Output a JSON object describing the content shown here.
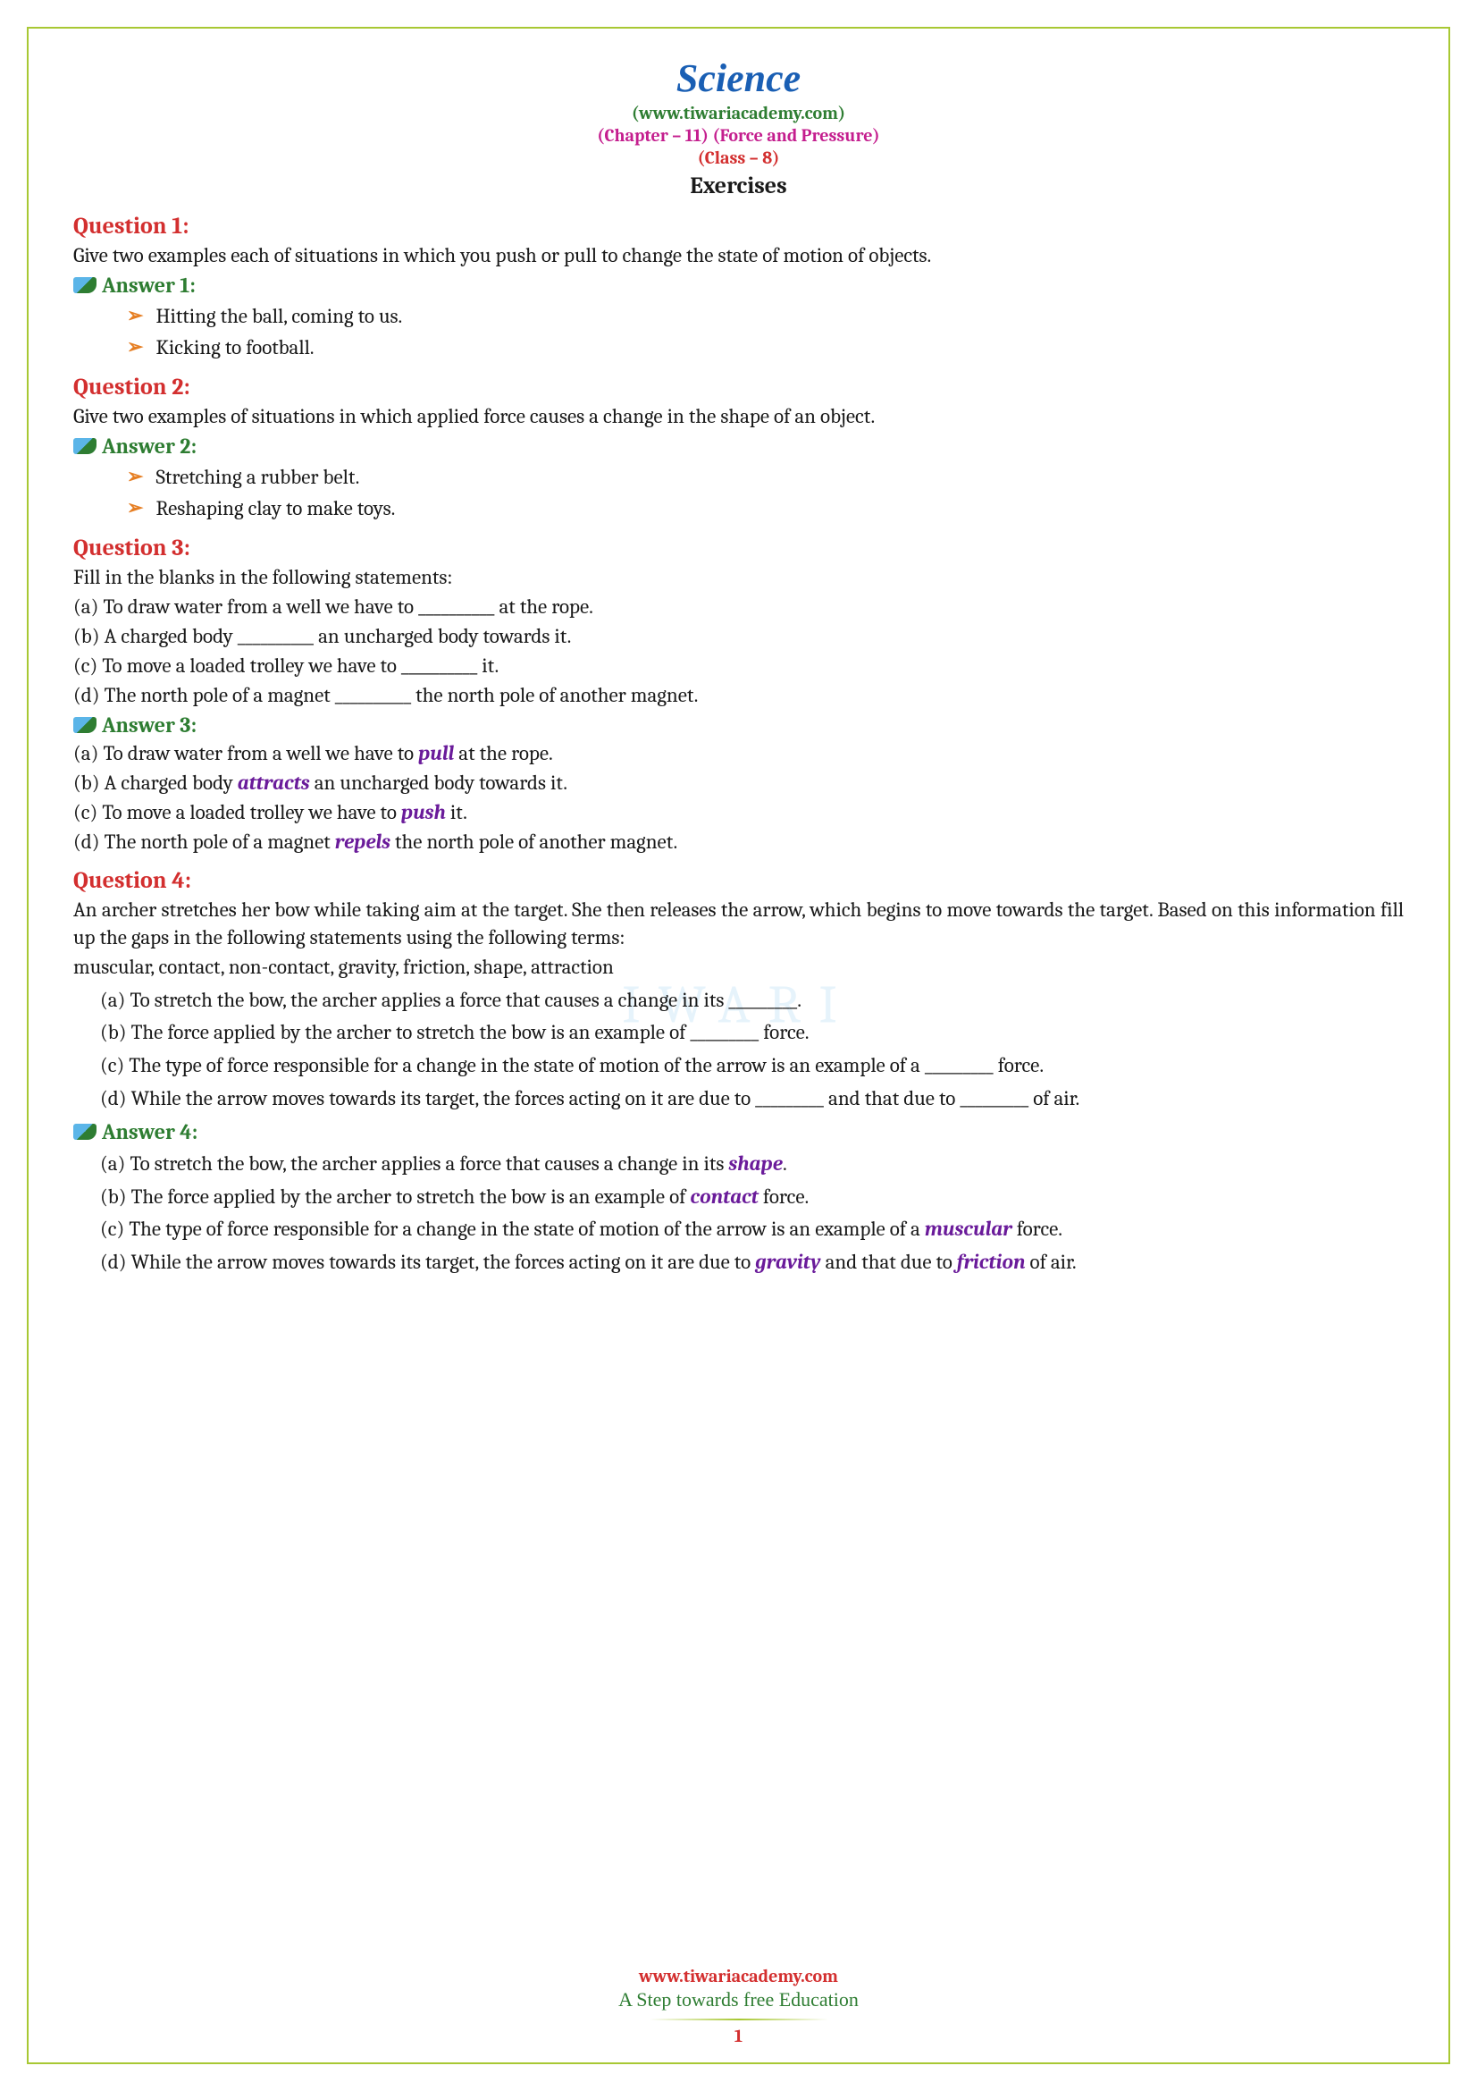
{
  "header": {
    "title": "Science",
    "website": "(www.tiwariacademy.com)",
    "chapter": "(Chapter – 11) (Force and Pressure)",
    "class": "(Class – 8)",
    "exercises": "Exercises"
  },
  "q1": {
    "heading": "Question 1:",
    "text": "Give two examples each of situations in which you push or pull to change the state of motion of objects.",
    "answer_heading": "Answer 1:",
    "bullets": [
      "Hitting the ball, coming to us.",
      "Kicking to football."
    ]
  },
  "q2": {
    "heading": "Question 2:",
    "text": "Give two examples of situations in which applied force causes a change in the shape of an object.",
    "answer_heading": "Answer 2:",
    "bullets": [
      "Stretching a rubber belt.",
      "Reshaping clay to make toys."
    ]
  },
  "q3": {
    "heading": "Question 3:",
    "intro": "Fill in the blanks in the following statements:",
    "a": "(a) To draw water from a well we have to __________ at the rope.",
    "b": "(b) A charged body __________ an uncharged body towards it.",
    "c": "(c) To move a loaded trolley we have to __________ it.",
    "d": "(d) The north pole of a magnet __________ the north pole of another magnet.",
    "answer_heading": "Answer 3:",
    "ans_a_pre": "(a) To draw water from a well we have to ",
    "ans_a_word": "pull",
    "ans_a_post": " at the rope.",
    "ans_b_pre": "(b) A charged body ",
    "ans_b_word": "attracts",
    "ans_b_post": " an uncharged body towards it.",
    "ans_c_pre": "(c) To move a loaded trolley we have to ",
    "ans_c_word": "push",
    "ans_c_post": " it.",
    "ans_d_pre": "(d) The north pole of a magnet ",
    "ans_d_word": "repels",
    "ans_d_post": " the north pole of another magnet."
  },
  "q4": {
    "heading": "Question 4:",
    "text": "An archer stretches her bow while taking aim at the target. She then releases the arrow, which begins to move towards the target. Based on this information fill up the gaps in the following statements using the following terms:",
    "terms": "muscular, contact, non-contact, gravity, friction, shape, attraction",
    "a": "(a) To stretch the bow, the archer applies a force that causes a change in its _________.",
    "b": "(b) The force applied by the archer to stretch the bow is an example of _________ force.",
    "c": "(c) The type of force responsible for a change in the state of motion of the arrow is an example of a _________ force.",
    "d": "(d) While the arrow moves towards its target, the forces acting on it are due to _________ and that due to _________ of air.",
    "answer_heading": "Answer 4:",
    "ans_a_pre": "(a) To stretch the bow, the archer applies a force that causes a change in its ",
    "ans_a_word": "shape",
    "ans_a_post": ".",
    "ans_b_pre": "(b) The force applied by the archer to stretch the bow is an example of ",
    "ans_b_word": "contact",
    "ans_b_post": " force.",
    "ans_c_pre": "(c) The type of force responsible for a change in the state of motion of the arrow is an example of a ",
    "ans_c_word": "muscular",
    "ans_c_post": " force.",
    "ans_d_pre": "(d) While the arrow moves towards its target, the forces acting on it are due to ",
    "ans_d_w1": "gravity",
    "ans_d_mid": " and that due to ",
    "ans_d_w2": "friction",
    "ans_d_post": " of air."
  },
  "footer": {
    "url": "www.tiwariacademy.com",
    "tagline": "A Step towards free Education",
    "page": "1"
  },
  "watermark": "IWARI"
}
